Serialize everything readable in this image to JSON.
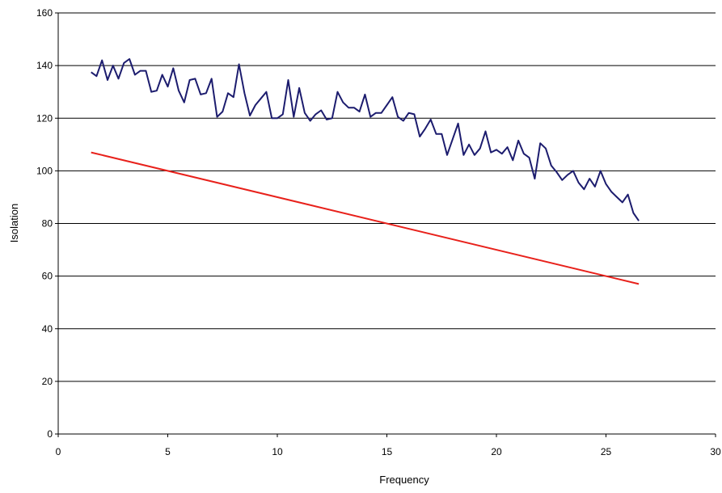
{
  "chart_data": {
    "type": "line",
    "title": "",
    "xlabel": "Frequency",
    "ylabel": "Isolation",
    "xlim": [
      0,
      30
    ],
    "ylim": [
      0,
      160
    ],
    "xticks": [
      0,
      5,
      10,
      15,
      20,
      25,
      30
    ],
    "yticks": [
      0,
      20,
      40,
      60,
      80,
      100,
      120,
      140,
      160
    ],
    "grid": "horizontal",
    "legend": "none",
    "series": [
      {
        "color": "#1c1c6e",
        "x": [
          1.5,
          1.75,
          2.0,
          2.25,
          2.5,
          2.75,
          3.0,
          3.25,
          3.5,
          3.75,
          4.0,
          4.25,
          4.5,
          4.75,
          5.0,
          5.25,
          5.5,
          5.75,
          6.0,
          6.25,
          6.5,
          6.75,
          7.0,
          7.25,
          7.5,
          7.75,
          8.0,
          8.25,
          8.5,
          8.75,
          9.0,
          9.25,
          9.5,
          9.75,
          10.0,
          10.25,
          10.5,
          10.75,
          11.0,
          11.25,
          11.5,
          11.75,
          12.0,
          12.25,
          12.5,
          12.75,
          13.0,
          13.25,
          13.5,
          13.75,
          14.0,
          14.25,
          14.5,
          14.75,
          15.0,
          15.25,
          15.5,
          15.75,
          16.0,
          16.25,
          16.5,
          16.75,
          17.0,
          17.25,
          17.5,
          17.75,
          18.0,
          18.25,
          18.5,
          18.75,
          19.0,
          19.25,
          19.5,
          19.75,
          20.0,
          20.25,
          20.5,
          20.75,
          21.0,
          21.25,
          21.5,
          21.75,
          22.0,
          22.25,
          22.5,
          22.75,
          23.0,
          23.25,
          23.5,
          23.75,
          24.0,
          24.25,
          24.5,
          24.75,
          25.0,
          25.25,
          25.5,
          25.75,
          26.0,
          26.25,
          26.5
        ],
        "y": [
          137.5,
          136,
          142,
          134.5,
          140,
          135,
          141,
          142.5,
          136.5,
          138,
          138,
          130,
          130.5,
          136.5,
          132,
          139,
          130.5,
          126,
          134.5,
          135,
          129,
          129.5,
          135,
          120.5,
          122.5,
          129.5,
          128,
          140.5,
          129.5,
          121,
          125,
          127.5,
          130,
          120,
          120,
          121.5,
          134.5,
          120.5,
          131.5,
          122,
          119,
          121.5,
          123,
          119.5,
          120,
          130,
          126,
          124,
          124,
          122.5,
          129,
          120.5,
          122,
          122,
          125,
          128,
          120.5,
          119,
          122,
          121.5,
          113,
          116,
          119.5,
          114,
          114,
          106,
          112,
          118,
          106,
          110,
          106,
          108.5,
          115,
          107,
          108,
          106.5,
          109,
          104,
          111.5,
          106.5,
          105,
          97,
          110.5,
          108.5,
          102,
          99.5,
          96.5,
          98.5,
          100,
          95.5,
          93,
          97,
          94,
          100,
          95,
          92,
          90,
          88,
          91,
          84,
          81
        ]
      },
      {
        "color": "#e8211b",
        "x": [
          1.5,
          26.5
        ],
        "y": [
          107,
          57
        ]
      }
    ]
  }
}
